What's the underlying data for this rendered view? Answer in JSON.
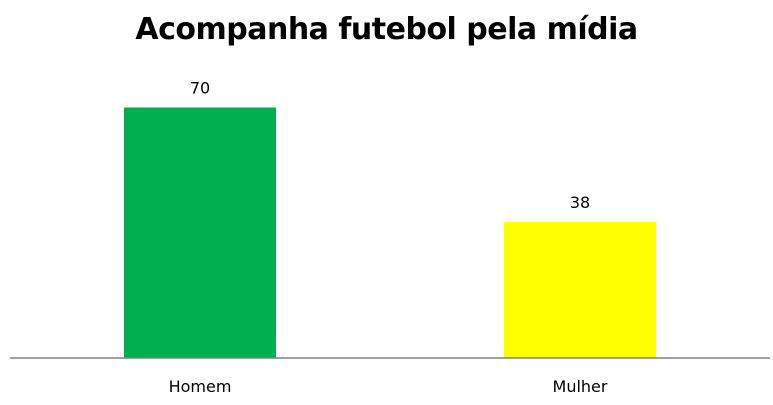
{
  "chart_data": {
    "type": "bar",
    "title": "Acompanha futebol pela mídia",
    "categories": [
      "Homem",
      "Mulher"
    ],
    "values": [
      70,
      38
    ],
    "colors": [
      "#00b050",
      "#ffff00"
    ],
    "axis_color": "#808080",
    "ylim": [
      0,
      76
    ],
    "grid": false,
    "legend": "none"
  }
}
